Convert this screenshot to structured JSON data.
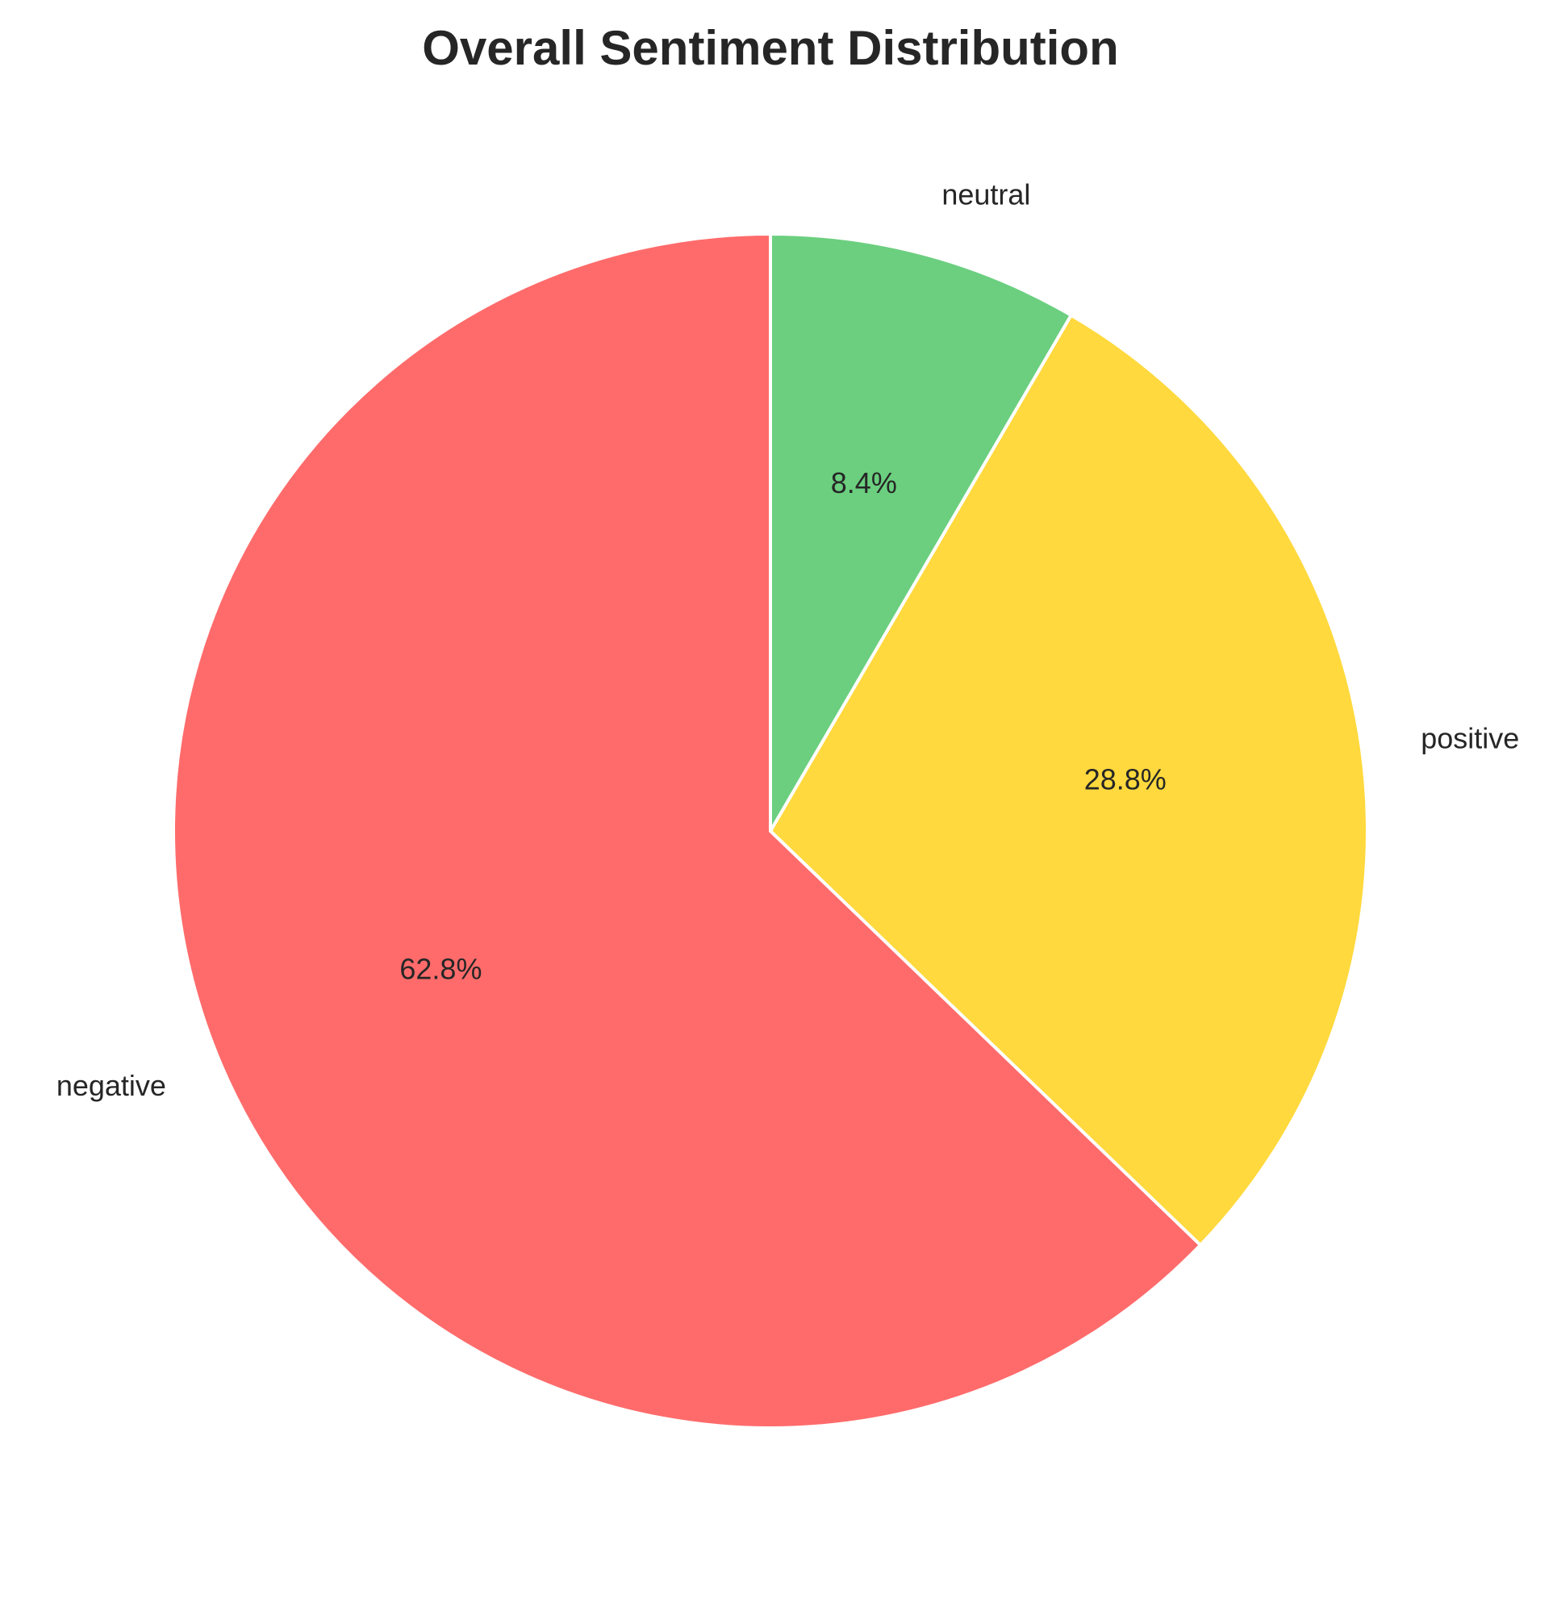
{
  "chart_data": {
    "type": "pie",
    "title": "Overall Sentiment Distribution",
    "categories": [
      "negative",
      "positive",
      "neutral"
    ],
    "values": [
      62.8,
      28.8,
      8.4
    ],
    "value_labels": [
      "62.8%",
      "28.8%",
      "8.4%"
    ],
    "colors": [
      "#ff6b6b",
      "#ffd93d",
      "#6bcf7f"
    ],
    "start_angle_deg": 90,
    "direction": "counterclockwise",
    "legend": "none"
  }
}
